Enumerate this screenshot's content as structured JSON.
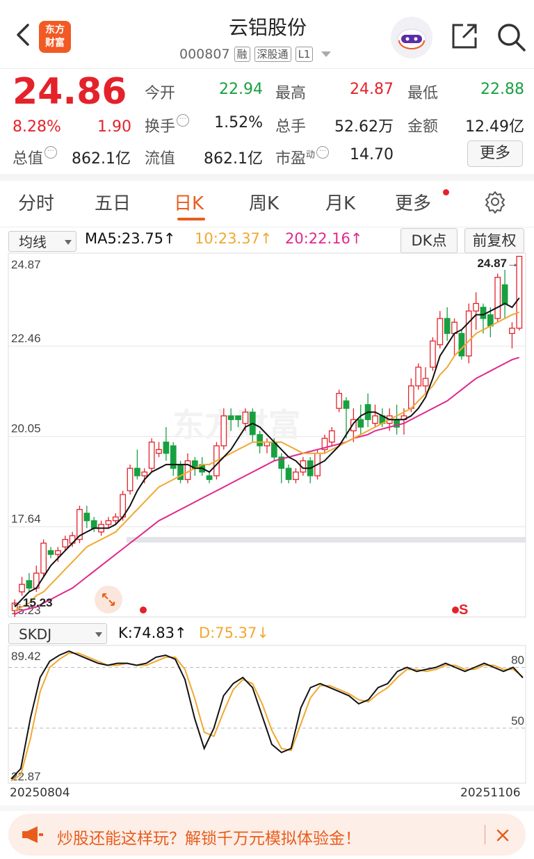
{
  "header": {
    "logo_text_top": "东方",
    "logo_text_bottom": "财富",
    "title": "云铝股份",
    "code": "000807",
    "tags": [
      "融",
      "深股通",
      "L1"
    ]
  },
  "quote": {
    "price": "24.86",
    "change_pct": "8.28%",
    "change": "1.90",
    "fields": {
      "open_label": "今开",
      "open_value": "22.94",
      "high_label": "最高",
      "high_value": "24.87",
      "low_label": "最低",
      "low_value": "22.88",
      "turnover_label": "换手",
      "turnover_value": "1.52%",
      "volume_label": "总手",
      "volume_value": "52.62万",
      "amount_label": "金额",
      "amount_value": "12.49亿",
      "total_cap_label": "总值",
      "total_cap_value": "862.1亿",
      "float_cap_label": "流值",
      "float_cap_value": "862.1亿",
      "pe_label": "市盈",
      "pe_superscript": "动",
      "pe_value": "14.70"
    },
    "more_label": "更多"
  },
  "tabs": [
    "分时",
    "五日",
    "日K",
    "周K",
    "月K",
    "更多"
  ],
  "active_tab": "日K",
  "ma_bar": {
    "selector_label": "均线",
    "ma5": "MA5:23.75↑",
    "ma10": "10:23.37↑",
    "ma20": "20:22.16↑",
    "dk_label": "DK点",
    "adjust_label": "前复权"
  },
  "kline": {
    "y_ticks": [
      "24.87",
      "22.46",
      "20.05",
      "17.64",
      "15.23"
    ],
    "high_marker": "24.87→",
    "low_marker": "←15.23",
    "s_marker": "S",
    "watermark": "东方财富"
  },
  "kdj": {
    "selector_label": "SKDJ",
    "k_text": "K:74.83↑",
    "d_text": "D:75.37↓",
    "y_top": "89.42",
    "y_bottom": "22.87",
    "level_80": "80",
    "level_50": "50"
  },
  "dates": {
    "start": "20250804",
    "end": "20251106"
  },
  "banner": {
    "text": "炒股还能这样玩？解锁千万元模拟体验金！"
  },
  "colors": {
    "up": "#e4222a",
    "down": "#18a040",
    "accent": "#e85d1d",
    "ma5": "#111111",
    "ma10": "#f0a830",
    "ma20": "#e0288c"
  },
  "chart_data": {
    "type": "candlestick",
    "y_range": [
      15.23,
      24.87
    ],
    "candles": [
      {
        "o": 15.4,
        "c": 15.6,
        "h": 15.7,
        "l": 15.23
      },
      {
        "o": 15.9,
        "c": 16.1,
        "h": 16.3,
        "l": 15.8
      },
      {
        "o": 16.2,
        "c": 16.0,
        "h": 16.4,
        "l": 15.9
      },
      {
        "o": 16.0,
        "c": 16.4,
        "h": 16.6,
        "l": 15.9
      },
      {
        "o": 16.4,
        "c": 17.2,
        "h": 17.3,
        "l": 16.3
      },
      {
        "o": 17.0,
        "c": 16.9,
        "h": 17.1,
        "l": 16.8
      },
      {
        "o": 16.9,
        "c": 17.0,
        "h": 17.1,
        "l": 16.7
      },
      {
        "o": 17.1,
        "c": 17.3,
        "h": 17.4,
        "l": 17.0
      },
      {
        "o": 17.2,
        "c": 17.4,
        "h": 17.5,
        "l": 17.1
      },
      {
        "o": 17.3,
        "c": 18.1,
        "h": 18.2,
        "l": 17.2
      },
      {
        "o": 18.0,
        "c": 17.8,
        "h": 18.2,
        "l": 17.6
      },
      {
        "o": 17.8,
        "c": 17.6,
        "h": 17.9,
        "l": 17.5
      },
      {
        "o": 17.5,
        "c": 17.7,
        "h": 17.8,
        "l": 17.4
      },
      {
        "o": 17.7,
        "c": 17.8,
        "h": 17.9,
        "l": 17.6
      },
      {
        "o": 17.8,
        "c": 17.9,
        "h": 18.0,
        "l": 17.7
      },
      {
        "o": 17.9,
        "c": 18.5,
        "h": 18.6,
        "l": 17.8
      },
      {
        "o": 18.6,
        "c": 19.2,
        "h": 19.3,
        "l": 18.5
      },
      {
        "o": 19.2,
        "c": 19.0,
        "h": 19.7,
        "l": 18.9
      },
      {
        "o": 19.0,
        "c": 19.1,
        "h": 19.2,
        "l": 18.8
      },
      {
        "o": 19.2,
        "c": 19.9,
        "h": 20.0,
        "l": 19.1
      },
      {
        "o": 19.6,
        "c": 19.7,
        "h": 19.9,
        "l": 19.5
      },
      {
        "o": 19.9,
        "c": 19.6,
        "h": 20.3,
        "l": 19.4
      },
      {
        "o": 19.8,
        "c": 19.2,
        "h": 19.9,
        "l": 19.0
      },
      {
        "o": 19.3,
        "c": 18.9,
        "h": 19.4,
        "l": 18.8
      },
      {
        "o": 18.9,
        "c": 19.4,
        "h": 19.6,
        "l": 18.8
      },
      {
        "o": 19.4,
        "c": 19.2,
        "h": 19.5,
        "l": 19.0
      },
      {
        "o": 19.3,
        "c": 19.1,
        "h": 19.5,
        "l": 19.0
      },
      {
        "o": 19.0,
        "c": 18.9,
        "h": 19.1,
        "l": 18.8
      },
      {
        "o": 19.0,
        "c": 19.8,
        "h": 19.9,
        "l": 18.9
      },
      {
        "o": 19.8,
        "c": 20.6,
        "h": 20.8,
        "l": 19.7
      },
      {
        "o": 20.6,
        "c": 20.5,
        "h": 20.8,
        "l": 20.2
      },
      {
        "o": 20.6,
        "c": 20.5,
        "h": 20.6,
        "l": 20.3
      },
      {
        "o": 20.4,
        "c": 20.7,
        "h": 20.8,
        "l": 20.2
      },
      {
        "o": 20.7,
        "c": 20.1,
        "h": 20.8,
        "l": 19.9
      },
      {
        "o": 20.1,
        "c": 19.8,
        "h": 20.2,
        "l": 19.6
      },
      {
        "o": 19.8,
        "c": 19.9,
        "h": 20.0,
        "l": 19.6
      },
      {
        "o": 19.9,
        "c": 19.5,
        "h": 20.0,
        "l": 19.4
      },
      {
        "o": 19.5,
        "c": 19.2,
        "h": 19.6,
        "l": 18.8
      },
      {
        "o": 19.2,
        "c": 18.9,
        "h": 19.3,
        "l": 18.8
      },
      {
        "o": 18.9,
        "c": 19.1,
        "h": 19.2,
        "l": 18.8
      },
      {
        "o": 19.1,
        "c": 19.4,
        "h": 19.5,
        "l": 19.0
      },
      {
        "o": 19.4,
        "c": 19.0,
        "h": 19.5,
        "l": 18.8
      },
      {
        "o": 19.0,
        "c": 19.6,
        "h": 19.7,
        "l": 18.9
      },
      {
        "o": 19.7,
        "c": 20.0,
        "h": 20.1,
        "l": 19.6
      },
      {
        "o": 19.9,
        "c": 20.2,
        "h": 20.3,
        "l": 19.8
      },
      {
        "o": 20.8,
        "c": 21.2,
        "h": 21.3,
        "l": 20.7
      },
      {
        "o": 21.0,
        "c": 20.8,
        "h": 21.1,
        "l": 20.0
      },
      {
        "o": 20.2,
        "c": 20.5,
        "h": 20.8,
        "l": 19.9
      },
      {
        "o": 20.5,
        "c": 20.3,
        "h": 20.9,
        "l": 20.1
      },
      {
        "o": 20.9,
        "c": 20.5,
        "h": 21.2,
        "l": 20.3
      },
      {
        "o": 20.4,
        "c": 20.6,
        "h": 20.9,
        "l": 20.3
      },
      {
        "o": 20.6,
        "c": 20.4,
        "h": 20.8,
        "l": 20.3
      },
      {
        "o": 20.4,
        "c": 20.6,
        "h": 20.8,
        "l": 20.2
      },
      {
        "o": 20.5,
        "c": 20.3,
        "h": 20.9,
        "l": 20.1
      },
      {
        "o": 20.5,
        "c": 20.6,
        "h": 20.8,
        "l": 20.1
      },
      {
        "o": 20.8,
        "c": 21.4,
        "h": 21.6,
        "l": 20.7
      },
      {
        "o": 21.4,
        "c": 21.9,
        "h": 22.0,
        "l": 21.3
      },
      {
        "o": 21.4,
        "c": 21.6,
        "h": 21.9,
        "l": 21.2
      },
      {
        "o": 21.9,
        "c": 22.6,
        "h": 22.7,
        "l": 21.8
      },
      {
        "o": 22.5,
        "c": 23.2,
        "h": 23.4,
        "l": 22.4
      },
      {
        "o": 23.2,
        "c": 22.8,
        "h": 23.5,
        "l": 22.6
      },
      {
        "o": 22.8,
        "c": 23.1,
        "h": 23.2,
        "l": 22.2
      },
      {
        "o": 22.8,
        "c": 22.2,
        "h": 22.9,
        "l": 22.1
      },
      {
        "o": 22.2,
        "c": 23.4,
        "h": 23.6,
        "l": 22.0
      },
      {
        "o": 23.4,
        "c": 23.6,
        "h": 23.9,
        "l": 22.9
      },
      {
        "o": 23.5,
        "c": 23.2,
        "h": 23.6,
        "l": 22.8
      },
      {
        "o": 23.3,
        "c": 23.0,
        "h": 23.5,
        "l": 22.7
      },
      {
        "o": 23.2,
        "c": 24.3,
        "h": 24.4,
        "l": 23.1
      },
      {
        "o": 24.1,
        "c": 23.6,
        "h": 24.5,
        "l": 23.2
      },
      {
        "o": 22.8,
        "c": 22.94,
        "h": 23.1,
        "l": 22.4
      },
      {
        "o": 22.94,
        "c": 24.86,
        "h": 24.87,
        "l": 22.88
      }
    ],
    "ma5": [
      15.5,
      15.7,
      15.9,
      16.0,
      16.3,
      16.6,
      16.8,
      17.0,
      17.2,
      17.4,
      17.5,
      17.6,
      17.6,
      17.6,
      17.7,
      17.9,
      18.2,
      18.6,
      18.9,
      19.1,
      19.2,
      19.3,
      19.3,
      19.3,
      19.3,
      19.2,
      19.2,
      19.1,
      19.3,
      19.5,
      19.7,
      20.0,
      20.3,
      20.4,
      20.3,
      20.1,
      19.9,
      19.7,
      19.5,
      19.4,
      19.2,
      19.2,
      19.3,
      19.4,
      19.6,
      19.8,
      20.1,
      20.4,
      20.6,
      20.7,
      20.7,
      20.6,
      20.5,
      20.5,
      20.5,
      20.6,
      20.8,
      21.1,
      21.6,
      22.2,
      22.5,
      22.8,
      22.9,
      23.1,
      23.3,
      23.3,
      23.4,
      23.5,
      23.6,
      23.5,
      23.75
    ],
    "ma10": [
      15.4,
      15.5,
      15.6,
      15.8,
      15.9,
      16.1,
      16.3,
      16.5,
      16.7,
      16.9,
      17.1,
      17.2,
      17.3,
      17.4,
      17.5,
      17.7,
      17.9,
      18.1,
      18.3,
      18.5,
      18.7,
      18.8,
      18.9,
      19.0,
      19.1,
      19.2,
      19.3,
      19.3,
      19.4,
      19.5,
      19.6,
      19.7,
      19.8,
      19.9,
      19.9,
      19.9,
      19.9,
      19.9,
      19.8,
      19.7,
      19.6,
      19.6,
      19.6,
      19.6,
      19.7,
      19.8,
      19.9,
      20.0,
      20.1,
      20.2,
      20.3,
      20.4,
      20.5,
      20.6,
      20.7,
      20.8,
      21.0,
      21.2,
      21.4,
      21.7,
      21.9,
      22.2,
      22.4,
      22.6,
      22.8,
      22.9,
      23.0,
      23.1,
      23.2,
      23.3,
      23.37
    ],
    "ma20": [
      15.3,
      15.4,
      15.45,
      15.5,
      15.6,
      15.7,
      15.8,
      15.9,
      16.0,
      16.15,
      16.3,
      16.45,
      16.6,
      16.75,
      16.9,
      17.05,
      17.2,
      17.35,
      17.5,
      17.65,
      17.8,
      17.9,
      18.0,
      18.1,
      18.2,
      18.3,
      18.4,
      18.5,
      18.6,
      18.7,
      18.8,
      18.9,
      19.0,
      19.1,
      19.2,
      19.3,
      19.4,
      19.45,
      19.5,
      19.55,
      19.6,
      19.65,
      19.7,
      19.75,
      19.8,
      19.85,
      19.9,
      20.0,
      20.05,
      20.1,
      20.2,
      20.25,
      20.3,
      20.35,
      20.4,
      20.5,
      20.6,
      20.7,
      20.8,
      20.9,
      21.0,
      21.15,
      21.3,
      21.45,
      21.6,
      21.7,
      21.8,
      21.9,
      22.0,
      22.1,
      22.16
    ],
    "skdj_k": [
      25,
      30,
      55,
      75,
      83,
      86,
      88,
      86,
      84,
      82,
      81,
      82,
      82,
      81,
      82,
      85,
      86,
      84,
      74,
      55,
      40,
      50,
      66,
      72,
      75,
      70,
      56,
      42,
      38,
      40,
      60,
      70,
      72,
      70,
      68,
      66,
      62,
      64,
      70,
      72,
      78,
      80,
      78,
      79,
      80,
      82,
      80,
      78,
      80,
      82,
      80,
      78,
      80,
      74.83
    ],
    "skdj_d": [
      24,
      27,
      45,
      68,
      80,
      84,
      87,
      87,
      85,
      83,
      81,
      81,
      82,
      81,
      81,
      83,
      85,
      85,
      79,
      65,
      48,
      46,
      58,
      69,
      74,
      72,
      62,
      49,
      40,
      39,
      52,
      65,
      71,
      71,
      69,
      67,
      64,
      63,
      67,
      70,
      75,
      79,
      79,
      78,
      79,
      81,
      81,
      79,
      79,
      81,
      81,
      79,
      79,
      75.37
    ]
  }
}
